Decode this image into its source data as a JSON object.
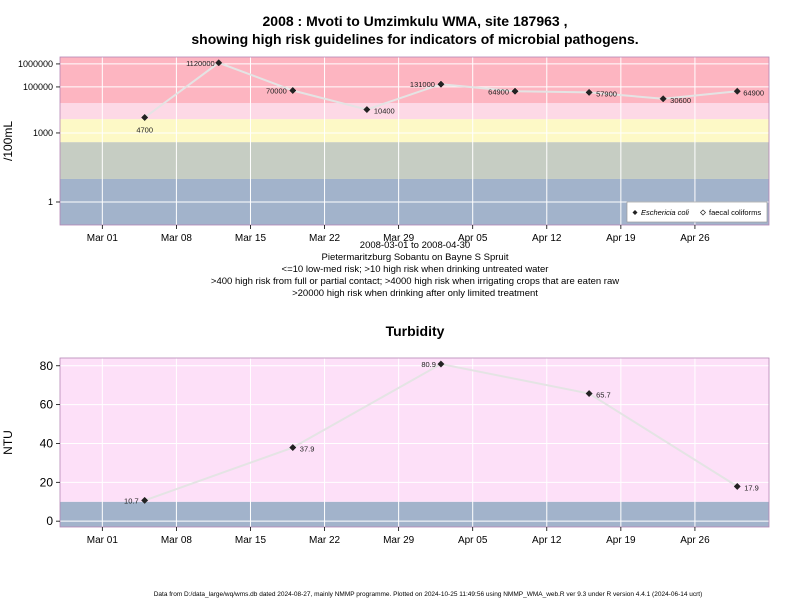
{
  "chart_data": [
    {
      "type": "line",
      "title_line1": "2008 : Mvoti to Umzimkulu WMA, site 187963 ,",
      "title_line2": "showing high risk guidelines for indicators of microbial pathogens.",
      "ylabel": "/100mL",
      "y_scale": "log",
      "ylim": [
        0.1,
        2000000
      ],
      "xlim": [
        "2008-02-26",
        "2008-05-03"
      ],
      "y_ticks": [
        1,
        1000,
        100000,
        1000000
      ],
      "y_tick_labels": [
        "1",
        "1000",
        "100000",
        "1000000"
      ],
      "x_ticks": [
        "2008-03-01",
        "2008-03-08",
        "2008-03-15",
        "2008-03-22",
        "2008-03-29",
        "2008-04-05",
        "2008-04-12",
        "2008-04-19",
        "2008-04-26"
      ],
      "x_tick_labels": [
        "Mar 01",
        "Mar 08",
        "Mar 15",
        "Mar 22",
        "Mar 29",
        "Apr 05",
        "Apr 12",
        "Apr 19",
        "Apr 26"
      ],
      "risk_bands": [
        {
          "from": 0.1,
          "to": 10,
          "color": "#a2b3cb"
        },
        {
          "from": 10,
          "to": 400,
          "color": "#c6cdc3"
        },
        {
          "from": 400,
          "to": 4000,
          "color": "#fdf9c6"
        },
        {
          "from": 4000,
          "to": 20000,
          "color": "#fdd9e6"
        },
        {
          "from": 20000,
          "to": 2000000,
          "color": "#fdb5c1"
        }
      ],
      "series": [
        {
          "name": "Eschericia coli",
          "marker": "filled-diamond",
          "x": [
            "2008-03-05",
            "2008-03-12",
            "2008-03-19",
            "2008-03-26",
            "2008-04-02",
            "2008-04-09",
            "2008-04-16",
            "2008-04-23",
            "2008-04-30"
          ],
          "y": [
            4700,
            1120000,
            70000,
            10400,
            131000,
            64900,
            57900,
            30600,
            64900
          ],
          "labels": [
            "4700",
            "1120000",
            "70000",
            "10400",
            "131000",
            "64900",
            "57900",
            "30600",
            "64900"
          ]
        }
      ],
      "legend": {
        "position": "bottom-right",
        "entries": [
          "Eschericia coli",
          "faecal coliforms"
        ]
      },
      "subtitle_lines": [
        "2008-03-01 to 2008-04-30",
        "Pietermaritzburg Sobantu on Bayne S Spruit",
        "<=10 low-med risk; >10 high risk when drinking untreated water",
        ">400 high risk from full or partial contact; >4000 high risk when irrigating crops that are eaten raw",
        ">20000 high risk when drinking after only limited treatment"
      ]
    },
    {
      "type": "line",
      "title": "Turbidity",
      "ylabel": "NTU",
      "ylim": [
        -3,
        84
      ],
      "xlim": [
        "2008-02-26",
        "2008-05-03"
      ],
      "y_ticks": [
        0,
        20,
        40,
        60,
        80
      ],
      "x_ticks": [
        "2008-03-01",
        "2008-03-08",
        "2008-03-15",
        "2008-03-22",
        "2008-03-29",
        "2008-04-05",
        "2008-04-12",
        "2008-04-19",
        "2008-04-26"
      ],
      "x_tick_labels": [
        "Mar 01",
        "Mar 08",
        "Mar 15",
        "Mar 22",
        "Mar 29",
        "Apr 05",
        "Apr 12",
        "Apr 19",
        "Apr 26"
      ],
      "risk_bands": [
        {
          "from": -3,
          "to": 10,
          "color": "#a2b3cb"
        },
        {
          "from": 10,
          "to": 84,
          "color": "#fde0f8"
        }
      ],
      "series": [
        {
          "x": [
            "2008-03-05",
            "2008-03-19",
            "2008-04-02",
            "2008-04-16",
            "2008-04-30"
          ],
          "y": [
            10.7,
            37.9,
            80.9,
            65.7,
            17.9
          ],
          "labels": [
            "10.7",
            "37.9",
            "80.9",
            "65.7",
            "17.9"
          ]
        }
      ]
    }
  ],
  "footer": "Data from D:/data_large/wq/wms.db dated 2024-08-27, mainly NMMP programme. Plotted on 2024-10-25 11:49:56 using NMMP_WMA_web.R ver 9.3 under R version 4.4.1 (2024-06-14 ucrt)"
}
